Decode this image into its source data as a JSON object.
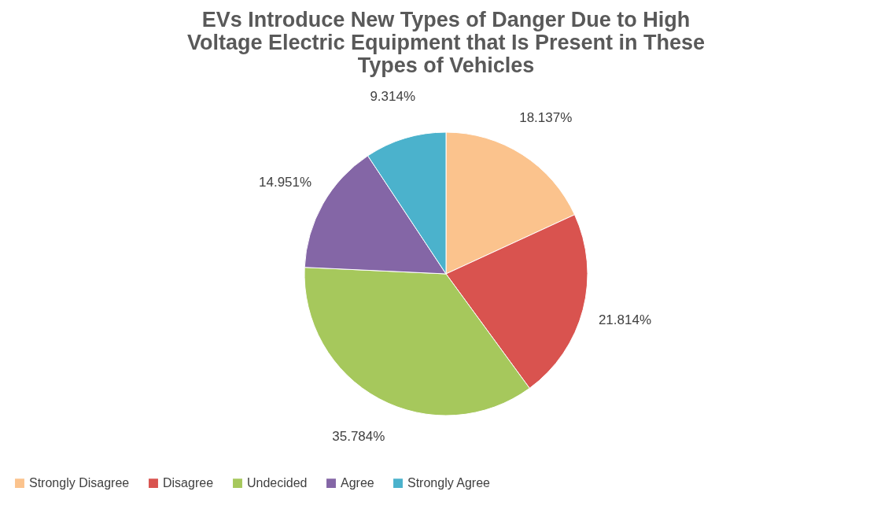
{
  "chart_data": {
    "type": "pie",
    "title": "EVs Introduce New Types of Danger Due to High Voltage Electric Equipment that Is Present in These Types of Vehicles",
    "categories": [
      "Strongly Disagree",
      "Disagree",
      "Undecided",
      "Agree",
      "Strongly Agree"
    ],
    "values": [
      18.137,
      21.814,
      35.784,
      14.951,
      9.314
    ],
    "value_labels": [
      "18.137%",
      "21.814%",
      "35.784%",
      "14.951%",
      "9.314%"
    ],
    "colors": [
      "#fbc38d",
      "#d9534f",
      "#a6c85c",
      "#8466a6",
      "#4bb2cc"
    ],
    "legend": "bottom"
  }
}
